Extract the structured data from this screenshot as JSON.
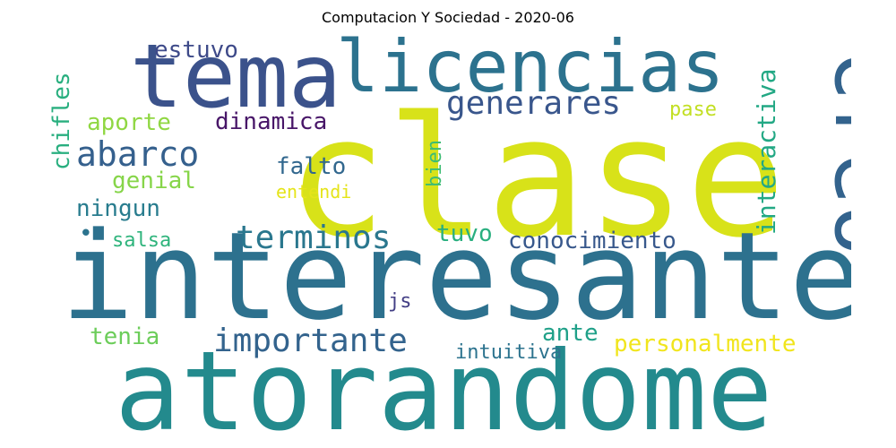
{
  "title": "Computacion Y Sociedad - 2020-06",
  "words": [
    {
      "text": "clase",
      "color": "#d8e219"
    },
    {
      "text": "interesante",
      "color": "#2d718e"
    },
    {
      "text": "atorandome",
      "color": "#238a8d"
    },
    {
      "text": "tema",
      "color": "#3b528b"
    },
    {
      "text": "licencias",
      "color": "#2c728e"
    },
    {
      "text": "creo",
      "color": "#33638d"
    },
    {
      "text": "generares",
      "color": "#39568c"
    },
    {
      "text": "estuvo",
      "color": "#3e4a89"
    },
    {
      "text": "abarco",
      "color": "#35608d"
    },
    {
      "text": "aporte",
      "color": "#90d743"
    },
    {
      "text": "dinamica",
      "color": "#481668"
    },
    {
      "text": "chifles",
      "color": "#29af7f"
    },
    {
      "text": "interactiva",
      "color": "#22a884"
    },
    {
      "text": "pase",
      "color": "#c2df23"
    },
    {
      "text": "bien",
      "color": "#3dbc74"
    },
    {
      "text": "falto",
      "color": "#31678e"
    },
    {
      "text": "genial",
      "color": "#86d549"
    },
    {
      "text": "entendi",
      "color": "#e5e419"
    },
    {
      "text": "ningun",
      "color": "#287c8e"
    },
    {
      "text": "terminos",
      "color": "#2a778e"
    },
    {
      "text": "tuvo",
      "color": "#29af7f"
    },
    {
      "text": "conocimiento",
      "color": "#38588c"
    },
    {
      "text": "salsa",
      "color": "#2fb47c"
    },
    {
      "text": "js",
      "color": "#433e85"
    },
    {
      "text": "importante",
      "color": "#33638d"
    },
    {
      "text": "ante",
      "color": "#1fa088"
    },
    {
      "text": "tenia",
      "color": "#6ccd5a"
    },
    {
      "text": "intuitiva",
      "color": "#2c738e"
    },
    {
      "text": "personalmente",
      "color": "#f1e51d"
    },
    {
      "text": "•",
      "color": "#2c738e"
    }
  ]
}
